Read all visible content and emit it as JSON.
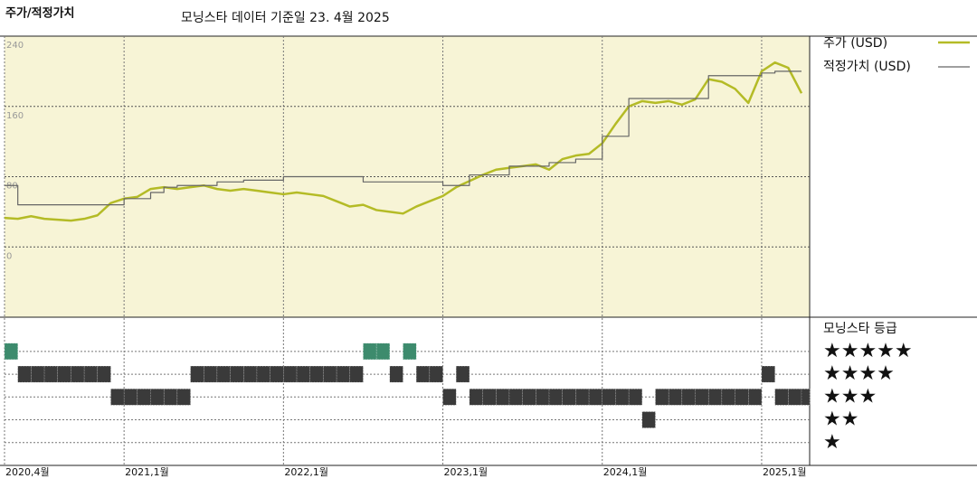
{
  "chart_data": [
    {
      "type": "line",
      "title": "주가/적정가치",
      "subtitle": "모닝스타 데이터 기준일 23. 4월 2025",
      "x": [
        "2020-04",
        "2020-05",
        "2020-06",
        "2020-07",
        "2020-08",
        "2020-09",
        "2020-10",
        "2020-11",
        "2020-12",
        "2021-01",
        "2021-02",
        "2021-03",
        "2021-04",
        "2021-05",
        "2021-06",
        "2021-07",
        "2021-08",
        "2021-09",
        "2021-10",
        "2021-11",
        "2021-12",
        "2022-01",
        "2022-02",
        "2022-03",
        "2022-04",
        "2022-05",
        "2022-06",
        "2022-07",
        "2022-08",
        "2022-09",
        "2022-10",
        "2022-11",
        "2022-12",
        "2023-01",
        "2023-02",
        "2023-03",
        "2023-04",
        "2023-05",
        "2023-06",
        "2023-07",
        "2023-08",
        "2023-09",
        "2023-10",
        "2023-11",
        "2023-12",
        "2024-01",
        "2024-02",
        "2024-03",
        "2024-04",
        "2024-05",
        "2024-06",
        "2024-07",
        "2024-08",
        "2024-09",
        "2024-10",
        "2024-11",
        "2024-12",
        "2025-01",
        "2025-02",
        "2025-03",
        "2025-04"
      ],
      "series": [
        {
          "name": "주가 (USD)",
          "color": "#b4bb26",
          "width": 2.5,
          "values": [
            33,
            32,
            35,
            32,
            31,
            30,
            32,
            36,
            50,
            55,
            57,
            66,
            68,
            66,
            68,
            70,
            66,
            64,
            66,
            64,
            62,
            60,
            62,
            60,
            58,
            52,
            46,
            48,
            42,
            40,
            38,
            46,
            52,
            58,
            68,
            75,
            82,
            88,
            90,
            92,
            94,
            88,
            100,
            104,
            106,
            118,
            140,
            160,
            166,
            164,
            166,
            162,
            168,
            191,
            188,
            180,
            164,
            200,
            210,
            204,
            175
          ]
        },
        {
          "name": "적정가치 (USD)",
          "color": "#666666",
          "width": 1.2,
          "step": true,
          "values": [
            70,
            48,
            48,
            48,
            48,
            48,
            48,
            48,
            48,
            55,
            55,
            62,
            68,
            70,
            70,
            70,
            74,
            74,
            76,
            76,
            76,
            80,
            80,
            80,
            80,
            80,
            80,
            74,
            74,
            74,
            74,
            74,
            74,
            70,
            70,
            82,
            82,
            82,
            92,
            92,
            92,
            96,
            96,
            100,
            100,
            126,
            126,
            169,
            169,
            169,
            169,
            169,
            169,
            195,
            195,
            195,
            195,
            198,
            200,
            200,
            200
          ]
        }
      ],
      "xlim": [
        "2020-04",
        "2025-04"
      ],
      "xticks": [
        {
          "value": "2020-04",
          "label": "2020,4월"
        },
        {
          "value": "2021-01",
          "label": "2021,1월"
        },
        {
          "value": "2022-01",
          "label": "2022,1월"
        },
        {
          "value": "2023-01",
          "label": "2023,1월"
        },
        {
          "value": "2024-01",
          "label": "2024,1월"
        },
        {
          "value": "2025-01",
          "label": "2025,1월"
        }
      ],
      "ylim": [
        -80,
        240
      ],
      "yticks": [
        0,
        80,
        160,
        240
      ],
      "grid": true,
      "background": "#f7f4d6"
    },
    {
      "type": "rating",
      "title": "모닝스타 등급",
      "x": [
        "2020-04",
        "2020-05",
        "2020-06",
        "2020-07",
        "2020-08",
        "2020-09",
        "2020-10",
        "2020-11",
        "2020-12",
        "2021-01",
        "2021-02",
        "2021-03",
        "2021-04",
        "2021-05",
        "2021-06",
        "2021-07",
        "2021-08",
        "2021-09",
        "2021-10",
        "2021-11",
        "2021-12",
        "2022-01",
        "2022-02",
        "2022-03",
        "2022-04",
        "2022-05",
        "2022-06",
        "2022-07",
        "2022-08",
        "2022-09",
        "2022-10",
        "2022-11",
        "2022-12",
        "2023-01",
        "2023-02",
        "2023-03",
        "2023-04",
        "2023-05",
        "2023-06",
        "2023-07",
        "2023-08",
        "2023-09",
        "2023-10",
        "2023-11",
        "2023-12",
        "2024-01",
        "2024-02",
        "2024-03",
        "2024-04",
        "2024-05",
        "2024-06",
        "2024-07",
        "2024-08",
        "2024-09",
        "2024-10",
        "2024-11",
        "2024-12",
        "2025-01",
        "2025-02",
        "2025-03",
        "2025-04"
      ],
      "values": [
        5,
        4,
        4,
        4,
        4,
        4,
        4,
        4,
        3,
        3,
        3,
        3,
        3,
        3,
        4,
        4,
        4,
        4,
        4,
        4,
        4,
        4,
        4,
        4,
        4,
        4,
        4,
        5,
        5,
        4,
        5,
        4,
        4,
        3,
        4,
        3,
        3,
        3,
        3,
        3,
        3,
        3,
        3,
        3,
        3,
        3,
        3,
        3,
        2,
        3,
        3,
        3,
        3,
        3,
        3,
        3,
        3,
        4,
        3,
        3,
        3
      ],
      "ylim": [
        0,
        6.5
      ],
      "yticks": [
        {
          "value": 5,
          "label": "★★★★★"
        },
        {
          "value": 4,
          "label": "★★★★"
        },
        {
          "value": 3,
          "label": "★★★"
        },
        {
          "value": 2,
          "label": "★★"
        },
        {
          "value": 1,
          "label": "★"
        }
      ],
      "level_colors": [
        "#3d8b6d",
        "#3a3a3a",
        "#3a3a3a",
        "#3a3a3a",
        "#3a3a3a"
      ]
    }
  ]
}
